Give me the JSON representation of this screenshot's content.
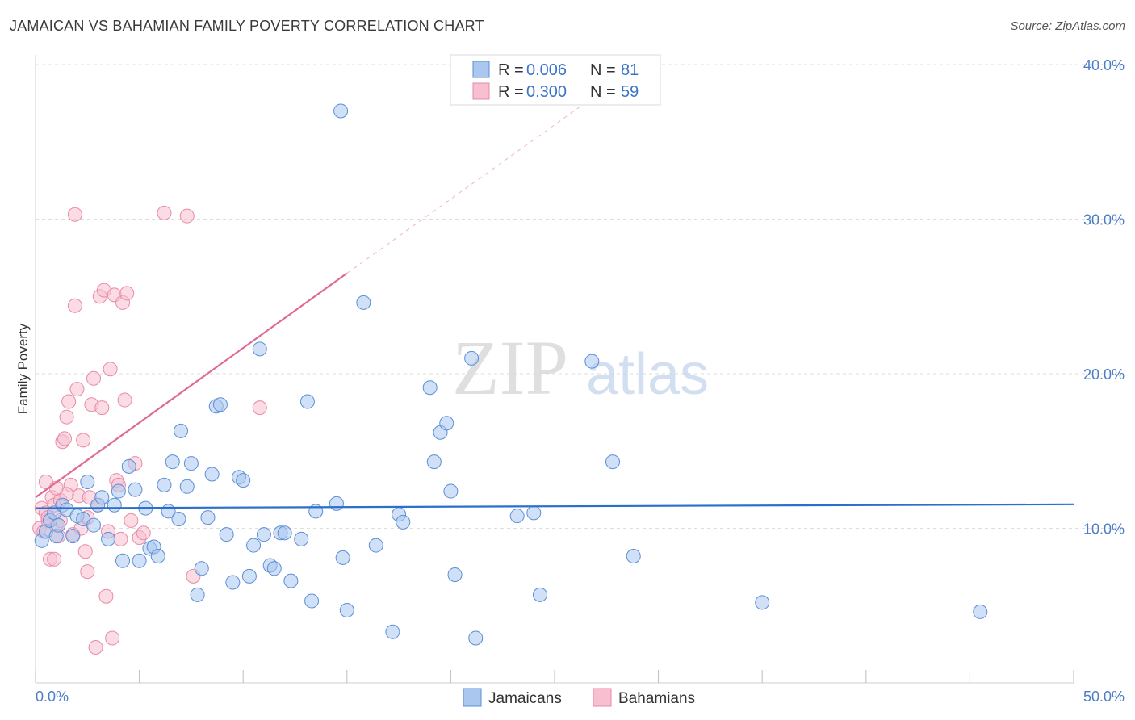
{
  "title": "JAMAICAN VS BAHAMIAN FAMILY POVERTY CORRELATION CHART",
  "source": "Source: ZipAtlas.com",
  "watermark": {
    "zip": "ZIP",
    "atlas": "atlas"
  },
  "colors": {
    "jamaicans_fill": "#a9c7ef",
    "jamaicans_stroke": "#5b8fd6",
    "jamaicans_line": "#2a6fcb",
    "bahamians_fill": "#f7bfd0",
    "bahamians_stroke": "#e88aa8",
    "bahamians_line": "#e06a93",
    "tick_text": "#4a7cc7"
  },
  "legend": {
    "r_label": "R =",
    "n_label": "N =",
    "jamaicans": {
      "r": "0.006",
      "n": "81"
    },
    "bahamians": {
      "r": "0.300",
      "n": "59"
    }
  },
  "chart_data": {
    "type": "scatter",
    "title": "JAMAICAN VS BAHAMIAN FAMILY POVERTY CORRELATION CHART",
    "ylabel": "Family Poverty",
    "xlabel": "",
    "xlim": [
      0,
      50
    ],
    "ylim": [
      0,
      40
    ],
    "x_tick_labels": {
      "min": "0.0%",
      "max": "50.0%"
    },
    "y_tick_labels": [
      "10.0%",
      "20.0%",
      "30.0%",
      "40.0%"
    ],
    "y_ticks": [
      10,
      20,
      30,
      40
    ],
    "grid": "horizontal-dashed",
    "legend_position": "top-center",
    "series": [
      {
        "name": "Jamaicans",
        "points": [
          [
            0.3,
            9.2
          ],
          [
            0.5,
            9.8
          ],
          [
            0.7,
            10.5
          ],
          [
            0.9,
            11.0
          ],
          [
            1.0,
            9.5
          ],
          [
            1.1,
            10.2
          ],
          [
            1.3,
            11.5
          ],
          [
            1.5,
            11.2
          ],
          [
            1.8,
            9.5
          ],
          [
            2.0,
            10.8
          ],
          [
            2.3,
            10.6
          ],
          [
            2.5,
            13.0
          ],
          [
            2.8,
            10.2
          ],
          [
            3.0,
            11.5
          ],
          [
            3.2,
            12.0
          ],
          [
            3.5,
            9.3
          ],
          [
            3.8,
            11.5
          ],
          [
            4.0,
            12.4
          ],
          [
            4.2,
            7.9
          ],
          [
            4.5,
            14.0
          ],
          [
            4.8,
            12.5
          ],
          [
            5.0,
            7.9
          ],
          [
            5.3,
            11.3
          ],
          [
            5.5,
            8.7
          ],
          [
            5.7,
            8.8
          ],
          [
            5.9,
            8.2
          ],
          [
            6.2,
            12.8
          ],
          [
            6.4,
            11.1
          ],
          [
            6.6,
            14.3
          ],
          [
            6.9,
            10.6
          ],
          [
            7.0,
            16.3
          ],
          [
            7.3,
            12.7
          ],
          [
            7.5,
            14.2
          ],
          [
            7.8,
            5.7
          ],
          [
            8.0,
            7.4
          ],
          [
            8.3,
            10.7
          ],
          [
            8.5,
            13.5
          ],
          [
            8.7,
            17.9
          ],
          [
            8.9,
            18.0
          ],
          [
            9.2,
            9.6
          ],
          [
            9.5,
            6.5
          ],
          [
            9.8,
            13.3
          ],
          [
            10.0,
            13.1
          ],
          [
            10.3,
            6.9
          ],
          [
            10.5,
            8.9
          ],
          [
            10.8,
            21.6
          ],
          [
            11.0,
            9.6
          ],
          [
            11.3,
            7.6
          ],
          [
            11.5,
            7.4
          ],
          [
            11.8,
            9.7
          ],
          [
            12.0,
            9.7
          ],
          [
            12.3,
            6.6
          ],
          [
            12.8,
            9.3
          ],
          [
            13.1,
            18.2
          ],
          [
            13.3,
            5.3
          ],
          [
            13.5,
            11.1
          ],
          [
            14.5,
            11.6
          ],
          [
            14.8,
            8.1
          ],
          [
            15.0,
            4.7
          ],
          [
            14.7,
            37.0
          ],
          [
            15.8,
            24.6
          ],
          [
            16.4,
            8.9
          ],
          [
            17.2,
            3.3
          ],
          [
            17.5,
            10.9
          ],
          [
            17.7,
            10.4
          ],
          [
            19.0,
            19.1
          ],
          [
            19.2,
            14.3
          ],
          [
            19.5,
            16.2
          ],
          [
            19.8,
            16.8
          ],
          [
            20.0,
            12.4
          ],
          [
            20.2,
            7.0
          ],
          [
            21.0,
            21.0
          ],
          [
            21.2,
            2.9
          ],
          [
            23.2,
            10.8
          ],
          [
            24.0,
            11.0
          ],
          [
            24.3,
            5.7
          ],
          [
            26.8,
            20.8
          ],
          [
            27.8,
            14.3
          ],
          [
            28.8,
            8.2
          ],
          [
            35.0,
            5.2
          ],
          [
            45.5,
            4.6
          ]
        ]
      },
      {
        "name": "Bahamians",
        "points": [
          [
            0.2,
            10.0
          ],
          [
            0.3,
            11.3
          ],
          [
            0.4,
            9.8
          ],
          [
            0.5,
            13.0
          ],
          [
            0.6,
            10.5
          ],
          [
            0.7,
            8.0
          ],
          [
            0.8,
            12.0
          ],
          [
            0.9,
            11.5
          ],
          [
            1.0,
            10.2
          ],
          [
            1.1,
            9.5
          ],
          [
            1.2,
            11.8
          ],
          [
            1.3,
            15.6
          ],
          [
            1.4,
            15.8
          ],
          [
            1.5,
            17.2
          ],
          [
            1.6,
            18.2
          ],
          [
            1.7,
            12.8
          ],
          [
            1.8,
            9.6
          ],
          [
            1.9,
            24.4
          ],
          [
            1.9,
            30.3
          ],
          [
            2.0,
            19.0
          ],
          [
            2.1,
            12.1
          ],
          [
            2.2,
            10.0
          ],
          [
            2.3,
            15.7
          ],
          [
            2.4,
            8.5
          ],
          [
            2.5,
            7.2
          ],
          [
            2.6,
            12.0
          ],
          [
            2.7,
            18.0
          ],
          [
            2.8,
            19.7
          ],
          [
            2.9,
            2.3
          ],
          [
            3.0,
            11.5
          ],
          [
            3.1,
            25.0
          ],
          [
            3.2,
            17.8
          ],
          [
            3.3,
            25.4
          ],
          [
            3.4,
            5.6
          ],
          [
            3.5,
            9.8
          ],
          [
            3.6,
            20.3
          ],
          [
            3.7,
            2.9
          ],
          [
            3.8,
            25.1
          ],
          [
            3.9,
            13.1
          ],
          [
            4.0,
            12.8
          ],
          [
            4.1,
            9.3
          ],
          [
            4.2,
            24.6
          ],
          [
            4.3,
            18.3
          ],
          [
            4.4,
            25.2
          ],
          [
            4.6,
            10.5
          ],
          [
            4.8,
            14.2
          ],
          [
            5.0,
            9.4
          ],
          [
            5.2,
            9.7
          ],
          [
            6.2,
            30.4
          ],
          [
            7.3,
            30.2
          ],
          [
            7.6,
            6.9
          ],
          [
            10.8,
            17.8
          ],
          [
            0.5,
            11.0
          ],
          [
            0.6,
            10.7
          ],
          [
            0.9,
            8.0
          ],
          [
            1.2,
            10.5
          ],
          [
            1.5,
            12.2
          ],
          [
            2.5,
            10.7
          ],
          [
            1.0,
            12.6
          ]
        ]
      }
    ],
    "trendlines": [
      {
        "name": "Jamaicans",
        "x": [
          0,
          50
        ],
        "y": [
          11.3,
          11.55
        ]
      },
      {
        "name": "Bahamians",
        "x": [
          0,
          15
        ],
        "y": [
          12.0,
          26.5
        ],
        "dashed_extension_to": [
          27.5,
          38.5
        ]
      }
    ]
  },
  "bottom_legend": [
    {
      "label": "Jamaicans"
    },
    {
      "label": "Bahamians"
    }
  ]
}
